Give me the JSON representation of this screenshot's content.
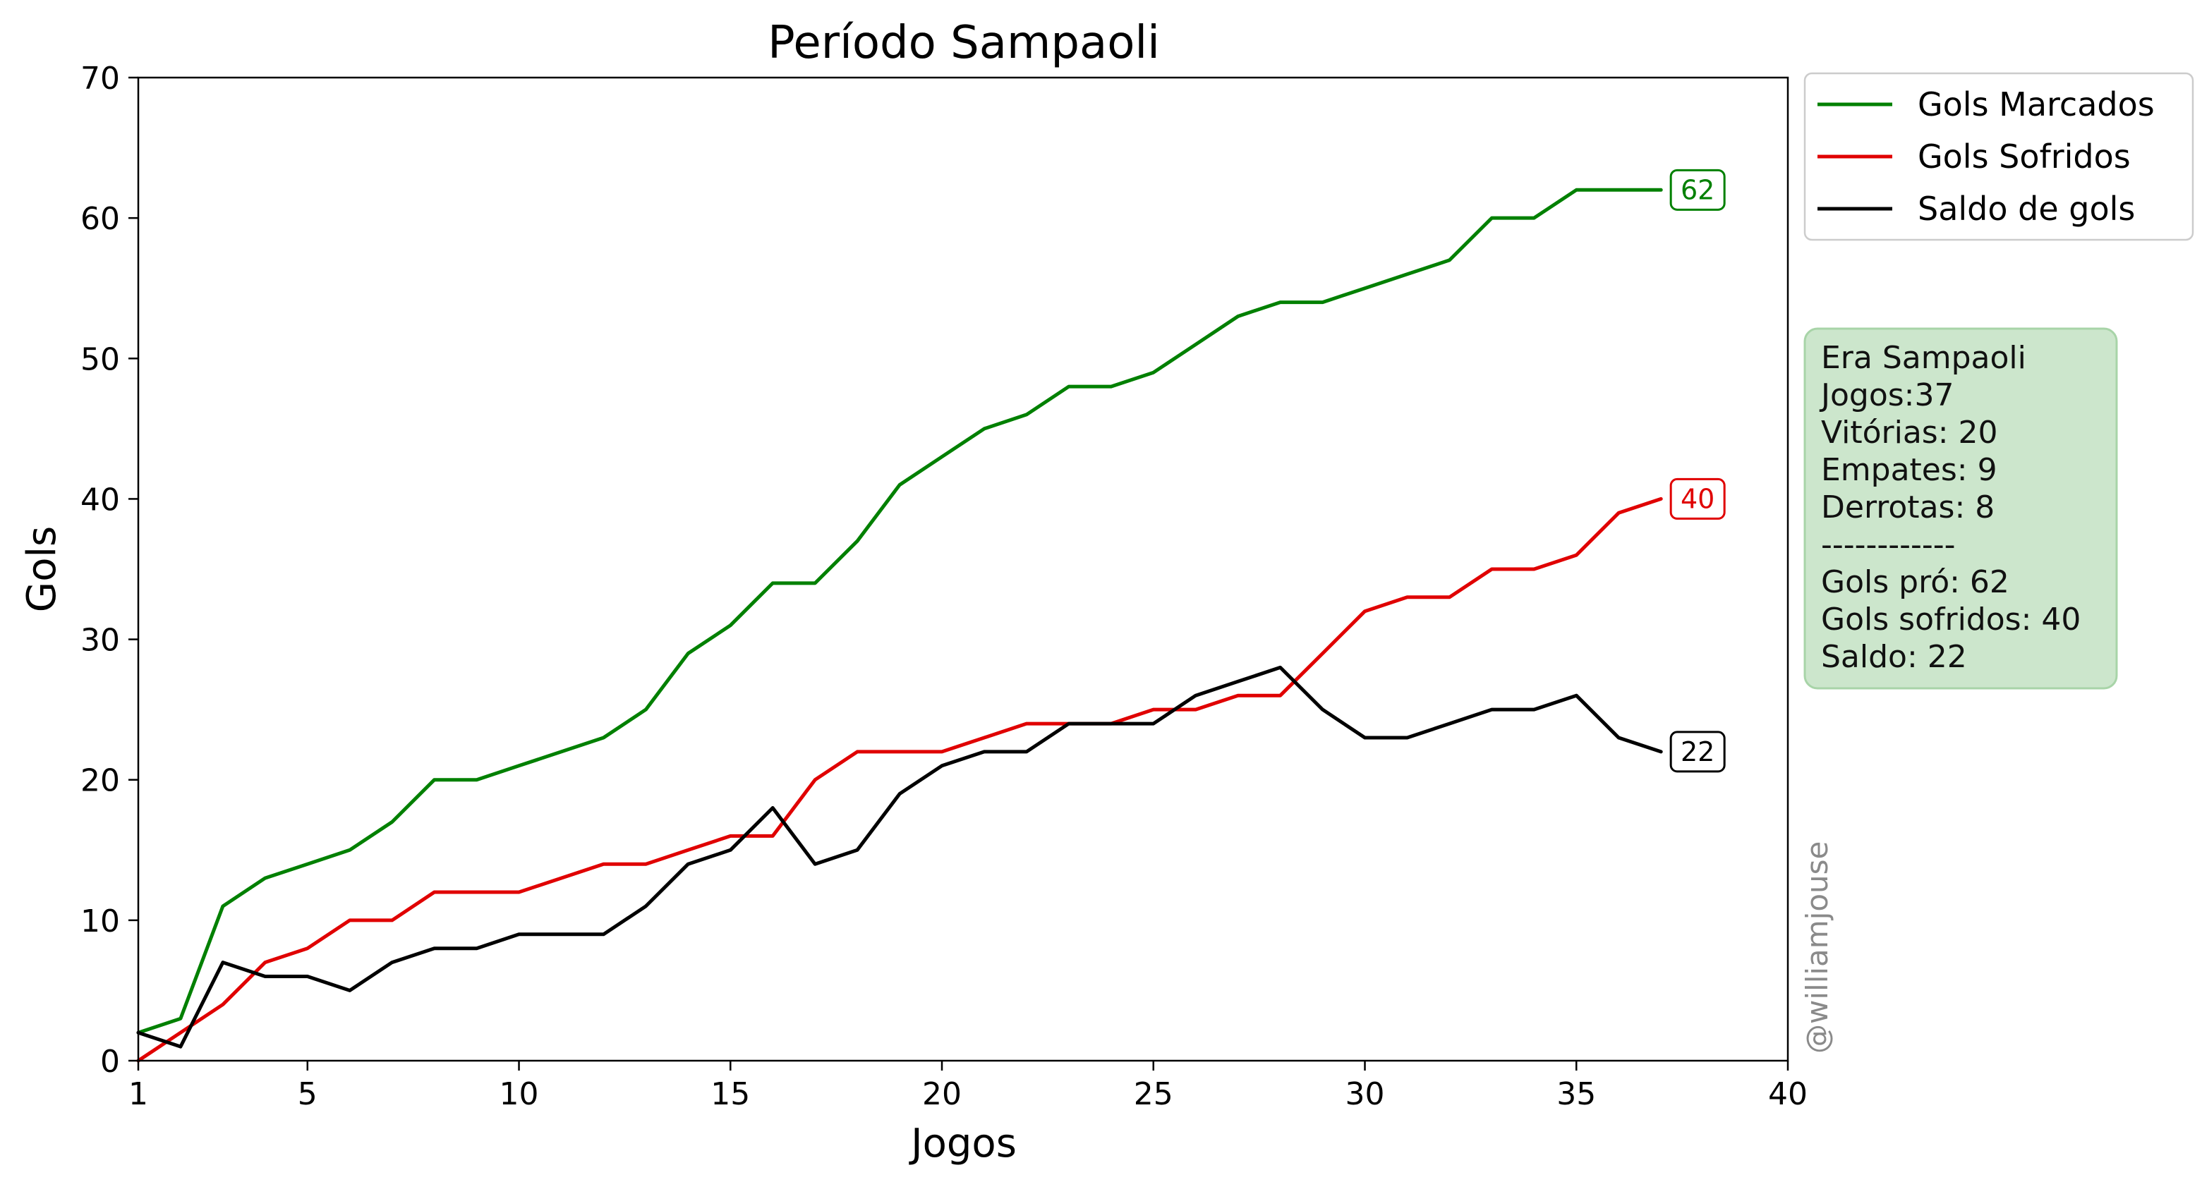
{
  "chart_data": {
    "type": "line",
    "title": "Período Sampaoli",
    "xlabel": "Jogos",
    "ylabel": "Gols",
    "xlim": [
      1,
      40
    ],
    "ylim": [
      0,
      70
    ],
    "xticks": [
      1,
      5,
      10,
      15,
      20,
      25,
      30,
      35,
      40
    ],
    "yticks": [
      0,
      10,
      20,
      30,
      40,
      50,
      60,
      70
    ],
    "grid": false,
    "legend_position": "outside-top-right",
    "x": [
      1,
      2,
      3,
      4,
      5,
      6,
      7,
      8,
      9,
      10,
      11,
      12,
      13,
      14,
      15,
      16,
      17,
      18,
      19,
      20,
      21,
      22,
      23,
      24,
      25,
      26,
      27,
      28,
      29,
      30,
      31,
      32,
      33,
      34,
      35,
      36,
      37
    ],
    "series": [
      {
        "name": "Gols Marcados",
        "color": "#008000",
        "values": [
          2,
          3,
          11,
          13,
          14,
          15,
          17,
          20,
          20,
          21,
          22,
          23,
          25,
          29,
          31,
          34,
          34,
          37,
          41,
          43,
          45,
          46,
          48,
          48,
          49,
          51,
          53,
          54,
          54,
          55,
          56,
          57,
          60,
          60,
          62,
          62,
          62
        ],
        "end_label": "62"
      },
      {
        "name": "Gols Sofridos",
        "color": "#e00000",
        "values": [
          0,
          2,
          4,
          7,
          8,
          10,
          10,
          12,
          12,
          12,
          13,
          14,
          14,
          15,
          16,
          16,
          20,
          22,
          22,
          22,
          23,
          24,
          24,
          24,
          25,
          25,
          26,
          26,
          29,
          32,
          33,
          33,
          35,
          35,
          36,
          39,
          40
        ],
        "end_label": "40"
      },
      {
        "name": "Saldo de gols",
        "color": "#000000",
        "values": [
          2,
          1,
          7,
          6,
          6,
          5,
          7,
          8,
          8,
          9,
          9,
          9,
          11,
          14,
          15,
          18,
          14,
          15,
          19,
          21,
          22,
          22,
          24,
          24,
          24,
          26,
          27,
          28,
          25,
          23,
          23,
          24,
          25,
          25,
          26,
          23,
          22
        ],
        "end_label": "22"
      }
    ],
    "info_box": {
      "lines": [
        "Era Sampaoli",
        "Jogos:37",
        "Vitórias: 20",
        "Empates: 9",
        "Derrotas: 8",
        "------------",
        "Gols pró: 62",
        "Gols sofridos: 40",
        "Saldo: 22"
      ],
      "background": "#cce6cc",
      "border": "#a8d4a8"
    },
    "watermark": "@williamjouse"
  }
}
